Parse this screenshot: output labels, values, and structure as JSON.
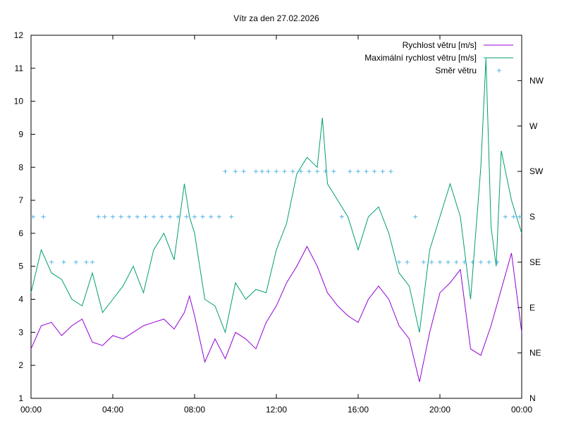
{
  "chart_data": {
    "type": "line",
    "title": "Vítr za den 27.02.2026",
    "xlabel": "",
    "ylabel": "",
    "x_range_hours": [
      0,
      24
    ],
    "x_ticks": [
      "00:00",
      "04:00",
      "08:00",
      "12:00",
      "16:00",
      "20:00",
      "00:00"
    ],
    "ylim": [
      1,
      12
    ],
    "y_ticks": [
      "1",
      "2",
      "3",
      "4",
      "5",
      "6",
      "7",
      "8",
      "9",
      "10",
      "11",
      "12"
    ],
    "y2_ticks": [
      "N",
      "NE",
      "E",
      "SE",
      "S",
      "SW",
      "W",
      "NW"
    ],
    "grid": false,
    "legend_position": "top-right",
    "series": [
      {
        "name": "Rychlost větru [m/s]",
        "style": "line",
        "color": "#9400d3",
        "axis": "y",
        "x": [
          0,
          0.5,
          1,
          1.5,
          2,
          2.5,
          3,
          3.5,
          4,
          4.5,
          5,
          5.5,
          6,
          6.5,
          7,
          7.5,
          7.75,
          8,
          8.5,
          9,
          9.5,
          10,
          10.5,
          11,
          11.5,
          12,
          12.5,
          13,
          13.5,
          14,
          14.5,
          15,
          15.5,
          16,
          16.5,
          17,
          17.5,
          18,
          18.5,
          19,
          19.5,
          20,
          20.5,
          21,
          21.5,
          22,
          22.5,
          23,
          23.5,
          24
        ],
        "values": [
          2.5,
          3.2,
          3.3,
          2.9,
          3.2,
          3.4,
          2.7,
          2.6,
          2.9,
          2.8,
          3.0,
          3.2,
          3.3,
          3.4,
          3.1,
          3.6,
          4.1,
          3.5,
          2.1,
          2.8,
          2.2,
          3.0,
          2.8,
          2.5,
          3.3,
          3.8,
          4.5,
          5.0,
          5.6,
          5.0,
          4.2,
          3.8,
          3.5,
          3.3,
          4.0,
          4.4,
          4.0,
          3.2,
          2.8,
          1.5,
          3.0,
          4.2,
          4.5,
          4.9,
          2.5,
          2.3,
          3.2,
          4.3,
          5.4,
          3.0
        ]
      },
      {
        "name": "Maximální rychlost větru [m/s]",
        "style": "line",
        "color": "#009e73",
        "axis": "y",
        "x": [
          0,
          0.5,
          1,
          1.5,
          2,
          2.5,
          3,
          3.5,
          4,
          4.5,
          5,
          5.5,
          6,
          6.5,
          7,
          7.5,
          7.75,
          8,
          8.5,
          9,
          9.5,
          10,
          10.5,
          11,
          11.5,
          12,
          12.5,
          13,
          13.5,
          14,
          14.25,
          14.5,
          15,
          15.5,
          16,
          16.5,
          17,
          17.5,
          18,
          18.5,
          19,
          19.5,
          20,
          20.5,
          21,
          21.5,
          22,
          22.25,
          22.5,
          22.75,
          23,
          23.5,
          24
        ],
        "values": [
          4.2,
          5.5,
          4.8,
          4.6,
          4.0,
          3.8,
          4.8,
          3.6,
          4.0,
          4.4,
          5.0,
          4.2,
          5.5,
          6.0,
          5.2,
          7.5,
          6.5,
          6.0,
          4.0,
          3.8,
          3.0,
          4.5,
          4.0,
          4.3,
          4.2,
          5.5,
          6.3,
          7.8,
          8.3,
          8.0,
          9.5,
          7.5,
          7.0,
          6.5,
          5.5,
          6.5,
          6.8,
          6.0,
          4.8,
          4.4,
          3.0,
          5.5,
          6.5,
          7.5,
          6.5,
          4.0,
          8.0,
          11.3,
          6.2,
          5.0,
          8.5,
          7.0,
          6.0
        ]
      },
      {
        "name": "Směr větru",
        "style": "points",
        "marker": "+",
        "color": "#56b4e9",
        "axis": "y2",
        "x": [
          0.1,
          0.6,
          1.0,
          1.6,
          2.2,
          2.7,
          3.0,
          3.3,
          3.6,
          4.0,
          4.4,
          4.8,
          5.2,
          5.6,
          6.0,
          6.4,
          6.8,
          7.2,
          7.6,
          8.0,
          8.4,
          8.8,
          9.2,
          9.5,
          9.8,
          10.0,
          10.4,
          11.0,
          11.3,
          11.6,
          12.0,
          12.4,
          12.8,
          13.2,
          13.6,
          14.0,
          14.4,
          14.8,
          15.2,
          15.6,
          16.0,
          16.4,
          16.8,
          17.2,
          17.6,
          18.0,
          18.4,
          18.8,
          19.2,
          19.6,
          20.0,
          20.4,
          20.8,
          21.2,
          21.6,
          22.0,
          22.4,
          22.8,
          23.2,
          23.6,
          23.9
        ],
        "values": [
          "S",
          "S",
          "SE",
          "SE",
          "SE",
          "SE",
          "SE",
          "S",
          "S",
          "S",
          "S",
          "S",
          "S",
          "S",
          "S",
          "S",
          "S",
          "S",
          "S",
          "S",
          "S",
          "S",
          "S",
          "SW",
          "S",
          "SW",
          "SW",
          "SW",
          "SW",
          "SW",
          "SW",
          "SW",
          "SW",
          "SW",
          "SW",
          "SW",
          "SW",
          "SW",
          "S",
          "SW",
          "SW",
          "SW",
          "SW",
          "SW",
          "SW",
          "SE",
          "SE",
          "S",
          "SE",
          "SE",
          "SE",
          "SE",
          "SE",
          "SE",
          "SE",
          "SE",
          "SE",
          "SE",
          "S",
          "S",
          "S"
        ]
      }
    ]
  }
}
